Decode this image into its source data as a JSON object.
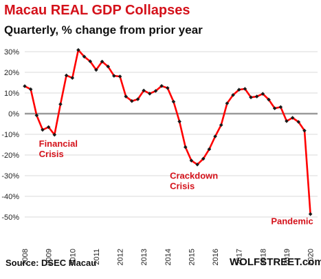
{
  "header": {
    "title": "Macau REAL GDP Collapses",
    "subtitle": "Quarterly, % change from prior year"
  },
  "footer": {
    "source": "Source: DSEC Macau",
    "brand": "WOLFSTREET.com"
  },
  "colors": {
    "line": "#ff0000",
    "marker": "#1a1a1a",
    "annotation": "#d4111a",
    "grid": "#d9d9d9",
    "zero": "#999999"
  },
  "chart_data": {
    "type": "line",
    "title": "Macau REAL GDP Collapses",
    "subtitle": "Quarterly, % change from prior year",
    "xlabel": "",
    "ylabel": "",
    "ylim": [
      -50,
      30
    ],
    "grid": true,
    "x_ticks": [
      "2008",
      "2009",
      "2010",
      "2011",
      "2012",
      "2013",
      "2014",
      "2015",
      "2016",
      "2017",
      "2018",
      "2019",
      "2020"
    ],
    "y_ticks": [
      "30%",
      "20%",
      "10%",
      "0%",
      "-10%",
      "-20%",
      "-30%",
      "-40%",
      "-50%"
    ],
    "y_tick_values": [
      30,
      20,
      10,
      0,
      -10,
      -20,
      -30,
      -40,
      -50
    ],
    "series": [
      {
        "values": [
          {
            "x": "2008-Q1",
            "y": 13.3
          },
          {
            "x": "2008-Q2",
            "y": 11.8
          },
          {
            "x": "2008-Q3",
            "y": -0.8
          },
          {
            "x": "2008-Q4",
            "y": -7.8
          },
          {
            "x": "2009-Q1",
            "y": -6.5
          },
          {
            "x": "2009-Q2",
            "y": -10.2
          },
          {
            "x": "2009-Q3",
            "y": 4.6
          },
          {
            "x": "2009-Q4",
            "y": 18.5
          },
          {
            "x": "2010-Q1",
            "y": 17.3
          },
          {
            "x": "2010-Q2",
            "y": 30.8
          },
          {
            "x": "2010-Q3",
            "y": 27.6
          },
          {
            "x": "2010-Q4",
            "y": 25.3
          },
          {
            "x": "2011-Q1",
            "y": 21.2
          },
          {
            "x": "2011-Q2",
            "y": 25.2
          },
          {
            "x": "2011-Q3",
            "y": 22.8
          },
          {
            "x": "2011-Q4",
            "y": 18.3
          },
          {
            "x": "2012-Q1",
            "y": 18.0
          },
          {
            "x": "2012-Q2",
            "y": 8.3
          },
          {
            "x": "2012-Q3",
            "y": 6.1
          },
          {
            "x": "2012-Q4",
            "y": 7.0
          },
          {
            "x": "2013-Q1",
            "y": 11.2
          },
          {
            "x": "2013-Q2",
            "y": 9.7
          },
          {
            "x": "2013-Q3",
            "y": 11.0
          },
          {
            "x": "2013-Q4",
            "y": 13.4
          },
          {
            "x": "2014-Q1",
            "y": 12.4
          },
          {
            "x": "2014-Q2",
            "y": 5.8
          },
          {
            "x": "2014-Q3",
            "y": -3.8
          },
          {
            "x": "2014-Q4",
            "y": -16.2
          },
          {
            "x": "2015-Q1",
            "y": -22.7
          },
          {
            "x": "2015-Q2",
            "y": -24.6
          },
          {
            "x": "2015-Q3",
            "y": -21.8
          },
          {
            "x": "2015-Q4",
            "y": -17.2
          },
          {
            "x": "2016-Q1",
            "y": -11.0
          },
          {
            "x": "2016-Q2",
            "y": -5.5
          },
          {
            "x": "2016-Q3",
            "y": 5.0
          },
          {
            "x": "2016-Q4",
            "y": 9.0
          },
          {
            "x": "2017-Q1",
            "y": 11.6
          },
          {
            "x": "2017-Q2",
            "y": 12.0
          },
          {
            "x": "2017-Q3",
            "y": 7.9
          },
          {
            "x": "2017-Q4",
            "y": 8.3
          },
          {
            "x": "2018-Q1",
            "y": 9.6
          },
          {
            "x": "2018-Q2",
            "y": 6.8
          },
          {
            "x": "2018-Q3",
            "y": 2.6
          },
          {
            "x": "2018-Q4",
            "y": 3.2
          },
          {
            "x": "2019-Q1",
            "y": -3.6
          },
          {
            "x": "2019-Q2",
            "y": -2.0
          },
          {
            "x": "2019-Q3",
            "y": -4.0
          },
          {
            "x": "2019-Q4",
            "y": -8.2
          },
          {
            "x": "2020-Q1",
            "y": -48.6
          }
        ]
      }
    ],
    "annotations": [
      {
        "text": "Financial",
        "near": {
          "x": "2009-Q1",
          "y": -16
        }
      },
      {
        "text": "Crisis",
        "near": {
          "x": "2009-Q1",
          "y": -21
        }
      },
      {
        "text": "Crackdown",
        "near": {
          "x": "2014-Q3",
          "y": -31.5
        }
      },
      {
        "text": "Crisis",
        "near": {
          "x": "2014-Q3",
          "y": -36.5
        }
      },
      {
        "text": "Pandemic",
        "near": {
          "x": "2018-Q4",
          "y": -53.5
        }
      }
    ]
  }
}
